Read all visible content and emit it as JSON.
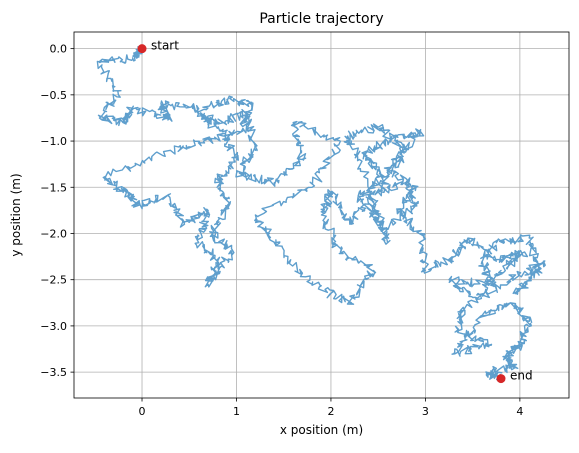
{
  "chart_data": {
    "type": "line",
    "title": "Particle trajectory",
    "xlabel": "x position (m)",
    "ylabel": "y position (m)",
    "xlim": [
      -0.72,
      4.52
    ],
    "ylim": [
      -3.78,
      0.18
    ],
    "xticks": [
      0,
      1,
      2,
      3,
      4
    ],
    "xtick_labels": [
      "0",
      "1",
      "2",
      "3",
      "4"
    ],
    "yticks": [
      0.0,
      -0.5,
      -1.0,
      -1.5,
      -2.0,
      -2.5,
      -3.0,
      -3.5
    ],
    "ytick_labels": [
      "0.0",
      "−0.5",
      "−1.0",
      "−1.5",
      "−2.0",
      "−2.5",
      "−3.0",
      "−3.5"
    ],
    "grid": true,
    "series": [
      {
        "style": "random-walk line",
        "color": "#5f9fcd",
        "x": [
          0.0,
          -0.1,
          -0.45,
          -0.25,
          -0.45,
          -0.2,
          -0.1,
          0.3,
          0.2,
          0.6,
          0.9,
          1.15,
          1.05,
          0.65,
          0.3,
          -0.4,
          -0.15,
          -0.05,
          0.25,
          0.45,
          0.7,
          0.6,
          0.8,
          0.7,
          0.95,
          0.75,
          0.9,
          0.8,
          1.0,
          0.85,
          0.6,
          0.8,
          1.1,
          1.2,
          1.0,
          1.4,
          1.7,
          1.6,
          2.1,
          1.8,
          1.2,
          1.4,
          1.8,
          2.2,
          2.45,
          2.1,
          1.9,
          2.0,
          2.2,
          2.4,
          2.5,
          2.6,
          2.3,
          2.15,
          2.5,
          2.8,
          2.65,
          2.5,
          2.8,
          2.9,
          2.55,
          2.3,
          2.55,
          2.35,
          2.6,
          2.95,
          2.6,
          2.9,
          2.7,
          2.95,
          3.0,
          3.3,
          3.45,
          3.75,
          4.05,
          3.8,
          3.55,
          3.25,
          3.7,
          3.6,
          3.75,
          4.1,
          4.2,
          3.95,
          4.25,
          3.9,
          3.4,
          3.35,
          3.7,
          3.3,
          3.6,
          3.9,
          4.1,
          4.0,
          3.85,
          3.95,
          3.65,
          3.8
        ],
        "y": [
          0.0,
          -0.1,
          -0.15,
          -0.5,
          -0.75,
          -0.8,
          -0.65,
          -0.75,
          -0.6,
          -0.65,
          -0.55,
          -0.6,
          -0.9,
          -1.0,
          -1.1,
          -1.4,
          -1.55,
          -1.7,
          -1.6,
          -1.9,
          -1.75,
          -2.1,
          -2.3,
          -2.55,
          -2.2,
          -2.0,
          -1.7,
          -1.4,
          -1.2,
          -0.9,
          -0.7,
          -0.8,
          -0.7,
          -1.1,
          -1.35,
          -1.45,
          -1.2,
          -0.8,
          -1.0,
          -1.5,
          -1.8,
          -2.1,
          -2.55,
          -2.75,
          -2.4,
          -2.2,
          -1.8,
          -1.55,
          -1.9,
          -1.6,
          -1.85,
          -2.1,
          -1.2,
          -0.95,
          -0.85,
          -1.1,
          -1.3,
          -1.55,
          -1.45,
          -1.7,
          -1.95,
          -1.6,
          -1.4,
          -1.15,
          -1.0,
          -0.9,
          -1.3,
          -1.5,
          -1.75,
          -2.0,
          -2.4,
          -2.25,
          -2.05,
          -2.3,
          -2.2,
          -2.4,
          -2.7,
          -2.5,
          -2.55,
          -2.3,
          -2.1,
          -2.05,
          -2.4,
          -2.65,
          -2.3,
          -2.5,
          -2.8,
          -3.05,
          -3.2,
          -3.3,
          -2.9,
          -2.75,
          -2.95,
          -3.2,
          -3.35,
          -3.45,
          -3.5,
          -3.57
        ]
      }
    ],
    "markers": [
      {
        "x": 0.0,
        "y": 0.0,
        "label": "start",
        "color": "#d62728"
      },
      {
        "x": 3.8,
        "y": -3.57,
        "label": "end",
        "color": "#d62728"
      }
    ]
  }
}
